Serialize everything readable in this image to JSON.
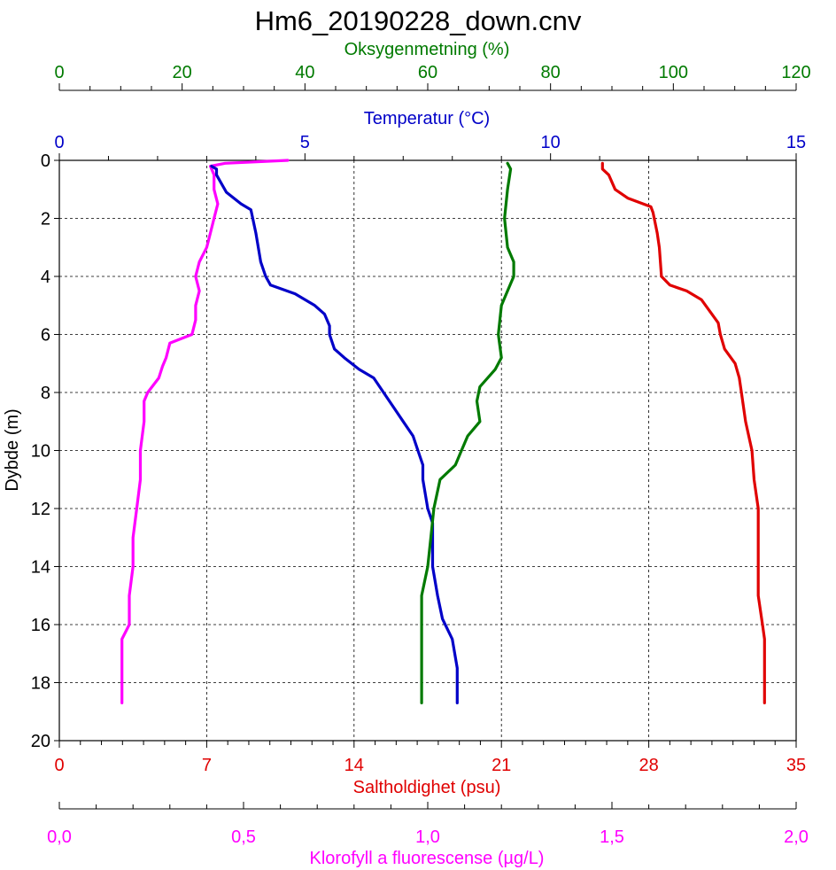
{
  "chart_data": {
    "type": "line",
    "title": "Hm6_20190228_down.cnv",
    "ylabel": "Dybde (m)",
    "ylim": [
      0,
      20
    ],
    "yticks": [
      "0",
      "2",
      "4",
      "6",
      "8",
      "10",
      "12",
      "14",
      "16",
      "18",
      "20"
    ],
    "grid": true,
    "axes": {
      "oxygen": {
        "label": "Oksygenmetning (%)",
        "min": 0,
        "max": 120,
        "ticks": [
          "0",
          "20",
          "40",
          "60",
          "80",
          "100",
          "120"
        ],
        "color": "#007a00"
      },
      "temperature": {
        "label": "Temperatur (°C)",
        "min": 0,
        "max": 15,
        "ticks": [
          "0",
          "5",
          "10",
          "15"
        ],
        "color": "#0000c8"
      },
      "salinity": {
        "label": "Saltholdighet (psu)",
        "min": 0,
        "max": 35,
        "ticks": [
          "0",
          "7",
          "14",
          "21",
          "28",
          "35"
        ],
        "color": "#e00000"
      },
      "fluorescence": {
        "label": "Klorofyll a fluorescense (µg/L)",
        "min": 0,
        "max": 2,
        "ticks": [
          "0,0",
          "0,5",
          "1,0",
          "1,5",
          "2,0"
        ],
        "color": "#ff00ff"
      }
    },
    "series": [
      {
        "key": "fluorescence",
        "axis": "fluorescence",
        "color": "#ff00ff",
        "depth": [
          0,
          0.1,
          0.2,
          0.5,
          1,
          1.5,
          2,
          2.5,
          3,
          3.5,
          4,
          4.5,
          5,
          5.5,
          6,
          6.3,
          6.8,
          7.1,
          7.5,
          8,
          8.3,
          9,
          10,
          11,
          12,
          13,
          14,
          15,
          16,
          16.5,
          17,
          17.5,
          18,
          18.5,
          18.7
        ],
        "values": [
          0.62,
          0.45,
          0.41,
          0.42,
          0.42,
          0.43,
          0.42,
          0.41,
          0.4,
          0.38,
          0.37,
          0.38,
          0.37,
          0.37,
          0.36,
          0.3,
          0.29,
          0.28,
          0.27,
          0.24,
          0.23,
          0.23,
          0.22,
          0.22,
          0.21,
          0.2,
          0.2,
          0.19,
          0.19,
          0.17,
          0.17,
          0.17,
          0.17,
          0.17,
          0.17
        ]
      },
      {
        "key": "temperature",
        "axis": "temperature",
        "color": "#0000c8",
        "depth": [
          0.2,
          0.3,
          0.5,
          1.1,
          1.5,
          1.7,
          2.5,
          3.5,
          4.0,
          4.3,
          4.6,
          5.0,
          5.3,
          5.7,
          6.0,
          6.5,
          6.8,
          7.2,
          7.5,
          8.0,
          8.5,
          9.0,
          9.5,
          10.0,
          10.5,
          11.0,
          12.0,
          12.5,
          13.0,
          14.0,
          15.0,
          15.8,
          16.5,
          17.5,
          18.7
        ],
        "values": [
          3.1,
          3.2,
          3.2,
          3.4,
          3.7,
          3.9,
          4.0,
          4.1,
          4.2,
          4.3,
          4.8,
          5.2,
          5.4,
          5.5,
          5.5,
          5.6,
          5.8,
          6.1,
          6.4,
          6.6,
          6.8,
          7.0,
          7.2,
          7.3,
          7.4,
          7.4,
          7.5,
          7.6,
          7.6,
          7.6,
          7.7,
          7.8,
          8.0,
          8.1,
          8.1
        ]
      },
      {
        "key": "oxygen",
        "axis": "oxygen",
        "color": "#007a00",
        "depth": [
          0.1,
          0.3,
          1.0,
          2.0,
          3.0,
          3.5,
          4.0,
          4.5,
          5.0,
          6.0,
          6.8,
          7.2,
          7.8,
          8.3,
          9.0,
          9.5,
          10.0,
          10.5,
          11.0,
          12.0,
          13.0,
          14.0,
          15.0,
          16.0,
          17.0,
          18.7
        ],
        "values": [
          73,
          73.5,
          73,
          72.5,
          73,
          74,
          74,
          73,
          72,
          71.5,
          72,
          71,
          68.5,
          68,
          68.5,
          66.5,
          65.5,
          64.5,
          62,
          61,
          60.5,
          60,
          59,
          59,
          59,
          59
        ]
      },
      {
        "key": "salinity",
        "axis": "salinity",
        "color": "#e00000",
        "depth": [
          0.1,
          0.3,
          0.5,
          1.0,
          1.3,
          1.6,
          1.8,
          2.5,
          3.0,
          4.0,
          4.3,
          4.5,
          4.8,
          5.2,
          5.6,
          6.0,
          6.5,
          7.0,
          7.5,
          8.0,
          9.0,
          10.0,
          11.0,
          12.0,
          13.0,
          14.0,
          15.0,
          16.0,
          16.5,
          17.0,
          18.0,
          18.7
        ],
        "values": [
          25.8,
          25.8,
          26.1,
          26.4,
          27.0,
          28.1,
          28.2,
          28.4,
          28.5,
          28.6,
          29.0,
          29.8,
          30.5,
          30.9,
          31.3,
          31.4,
          31.6,
          32.1,
          32.3,
          32.4,
          32.6,
          32.9,
          33.0,
          33.2,
          33.2,
          33.2,
          33.2,
          33.4,
          33.5,
          33.5,
          33.5,
          33.5
        ]
      }
    ]
  }
}
